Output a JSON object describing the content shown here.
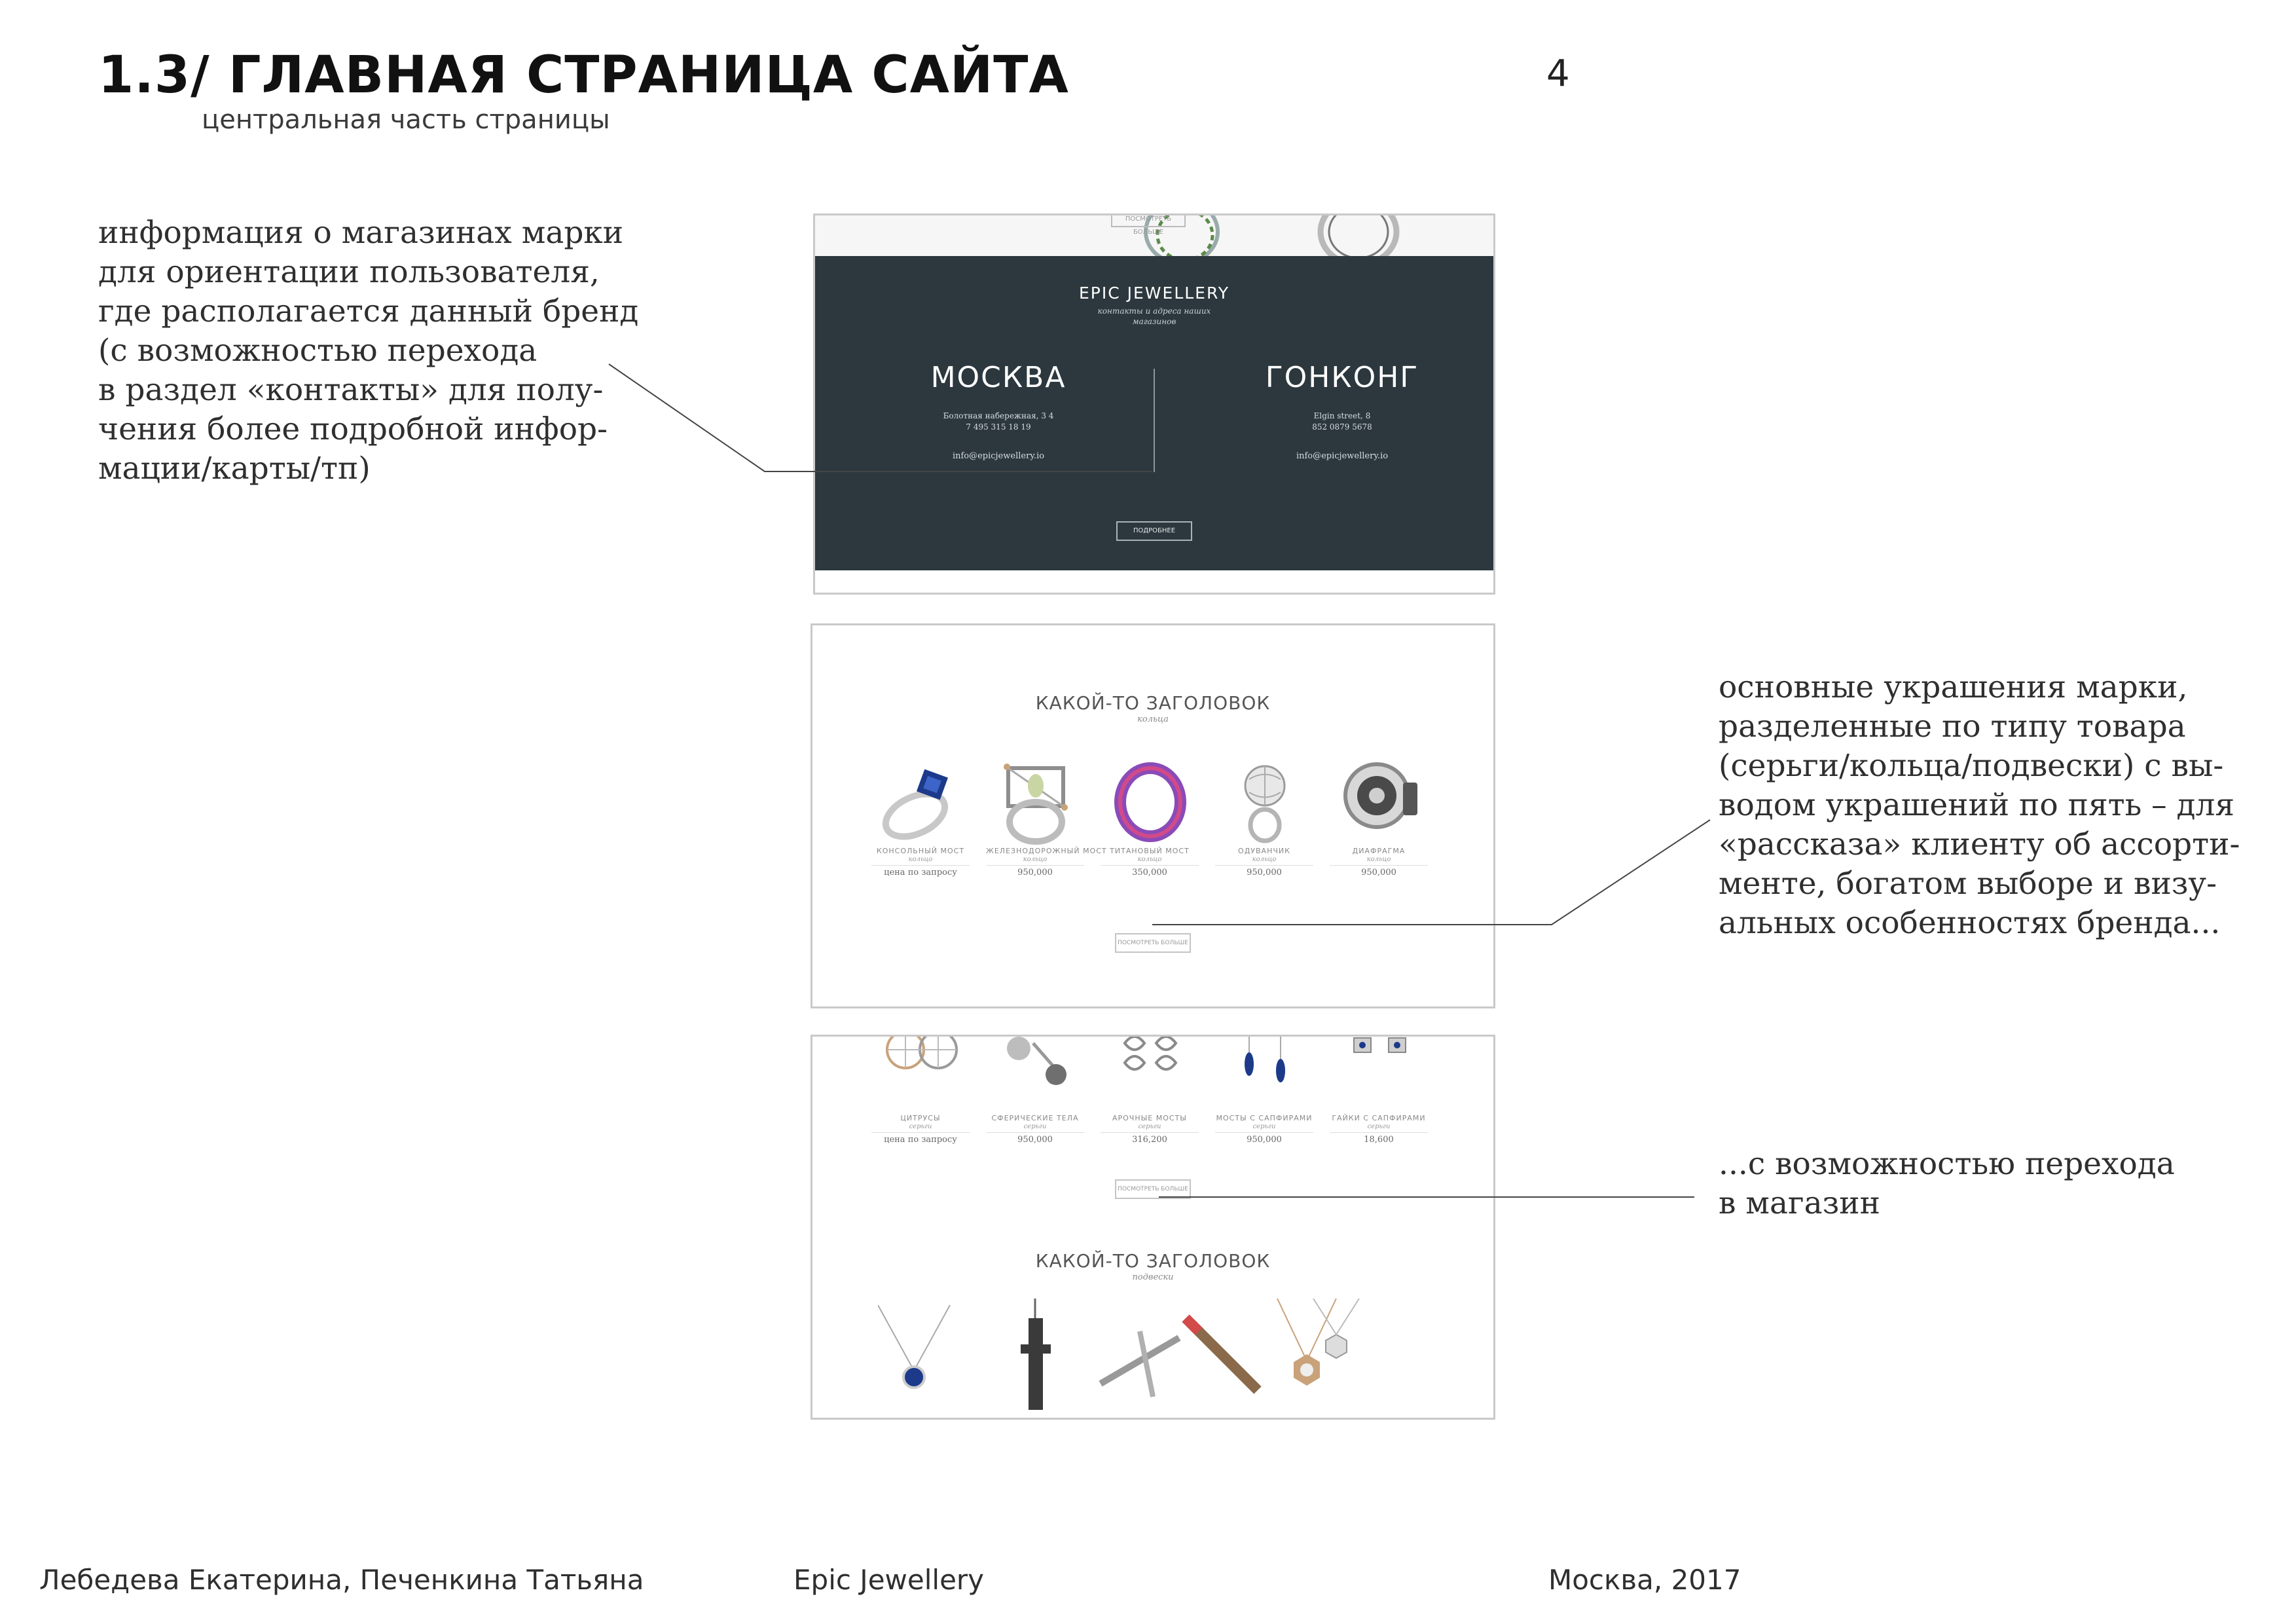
{
  "header": {
    "title": "1.3/ ГЛАВНАЯ СТРАНИЦА САЙТА",
    "subtitle": "центральная часть страницы",
    "page_number": "4"
  },
  "notes": {
    "stores": [
      "информация о магазинах марки",
      "для ориентации пользователя,",
      "где располагается данный бренд",
      "(с возможностью перехода",
      "в раздел «контакты» для полу-",
      "чения более подробной инфор-",
      "мации/карты/тп)"
    ],
    "products": [
      "основные украшения марки,",
      "разделенные по типу товара",
      "(серьги/кольца/подвески) с вы-",
      "водом украшений по пять – для",
      "«рассказа» клиенту об ассорти-",
      "менте, богатом выборе и визу-",
      "альных особенностях бренда..."
    ],
    "shop": [
      "...с возможностью перехода",
      "в магазин"
    ]
  },
  "mockup_stores": {
    "top_button": "ПОСМОТРЕТЬ БОЛЬШЕ",
    "brand": "EPIC JEWELLERY",
    "tagline": "контакты и адреса наших магазинов",
    "cities": [
      {
        "name": "МОСКВА",
        "address": "Болотная набережная, 3 4",
        "phone": "7 495 315 18 19",
        "email": "info@epicjewellery.io"
      },
      {
        "name": "ГОНКОНГ",
        "address": "Elgin street, 8",
        "phone": "852 0879 5678",
        "email": "info@epicjewellery.io"
      }
    ],
    "more_button": "ПОДРОБНЕЕ"
  },
  "mockup_rings": {
    "heading": "КАКОЙ-ТО ЗАГОЛОВОК",
    "subheading": "кольца",
    "products": [
      {
        "name": "КОНСОЛЬНЫЙ МОСТ",
        "category": "кольцо",
        "price": "цена по запросу"
      },
      {
        "name": "ЖЕЛЕЗНОДОРОЖНЫЙ МОСТ",
        "category": "кольцо",
        "price": "950,000"
      },
      {
        "name": "ТИТАНОВЫЙ МОСТ",
        "category": "кольцо",
        "price": "350,000"
      },
      {
        "name": "ОДУВАНЧИК",
        "category": "кольцо",
        "price": "950,000"
      },
      {
        "name": "ДИАФРАГМА",
        "category": "кольцо",
        "price": "950,000"
      }
    ],
    "more_button": "ПОСМОТРЕТЬ БОЛЬШЕ"
  },
  "mockup_earrings": {
    "products": [
      {
        "name": "ЦИТРУСЫ",
        "category": "серьги",
        "price": "цена по запросу"
      },
      {
        "name": "СФЕРИЧЕСКИЕ ТЕЛА",
        "category": "серьги",
        "price": "950,000"
      },
      {
        "name": "АРОЧНЫЕ МОСТЫ",
        "category": "серьги",
        "price": "316,200"
      },
      {
        "name": "МОСТЫ С САПФИРАМИ",
        "category": "серьги",
        "price": "950,000"
      },
      {
        "name": "ГАЙКИ С САПФИРАМИ",
        "category": "серьги",
        "price": "18,600"
      }
    ],
    "more_button": "ПОСМОТРЕТЬ БОЛЬШЕ",
    "heading": "КАКОЙ-ТО ЗАГОЛОВОК",
    "subheading": "подвески"
  },
  "footer": {
    "authors": "Лебедева Екатерина, Печенкина Татьяна",
    "brand": "Epic Jewellery",
    "place": "Москва, 2017"
  },
  "colors": {
    "dark_panel": "#2c383e",
    "accent_blue": "#1d3a8a",
    "accent_purple": "#8a4bb8",
    "gold": "#c9a27a"
  }
}
